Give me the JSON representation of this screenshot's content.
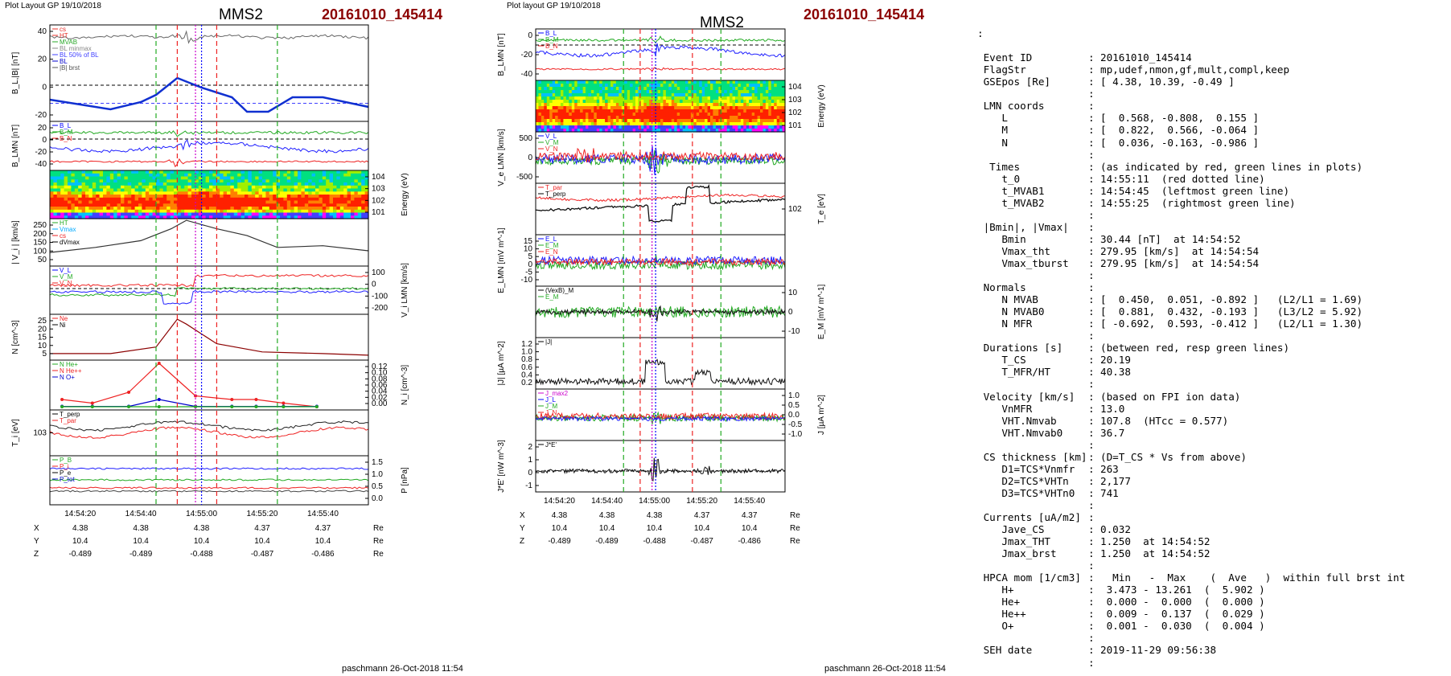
{
  "left": {
    "header_left": "Plot Layout GP 19/10/2018",
    "title": "MMS2",
    "event": "20161010_145414",
    "footer": "paschmann 26-Oct-2018 11:54",
    "time_ticks": [
      "14:54:20",
      "14:54:40",
      "14:55:00",
      "14:55:20",
      "14:55:40"
    ],
    "panels": [
      {
        "ylabel": "B_L,|B| [nT]",
        "ticks_left": [
          "40",
          "20",
          "0",
          "-20"
        ],
        "legend": [
          "cs",
          "HT",
          "MVAB",
          "BL minmax",
          "BL 50% of BL",
          "BL",
          "|B| brst"
        ],
        "legend_colors": [
          "#e8302a",
          "#e8302a",
          "#2aa82a",
          "#888888",
          "#4040ff",
          "#0000cc",
          "#555555"
        ]
      },
      {
        "ylabel": "B_LMN [nT]",
        "ticks_left": [
          "20",
          "0",
          "-20",
          "-40"
        ],
        "legend": [
          "B_L",
          "B_M",
          "B_N"
        ],
        "legend_colors": [
          "#0000ff",
          "#22aa22",
          "#ee2222"
        ]
      },
      {
        "ylabel": "Energy (eV)",
        "ticks_right": [
          "10^4",
          "10^3",
          "10^2",
          "10^1"
        ]
      },
      {
        "ylabel": "| V_i | [km/s]",
        "ticks_left": [
          "250",
          "200",
          "150",
          "100",
          "50"
        ],
        "legend": [
          "HT",
          "Vmax",
          "cs",
          "dVmax"
        ],
        "legend_colors": [
          "#22aa22",
          "#00aaff",
          "#ee2222",
          "#000000"
        ]
      },
      {
        "ylabel": "V_i LMN [km/s]",
        "ticks_right": [
          "100",
          "0",
          "-100",
          "-200"
        ],
        "legend": [
          "V_L",
          "V_M",
          "V_N"
        ],
        "legend_colors": [
          "#0000ff",
          "#22aa22",
          "#ee2222"
        ]
      },
      {
        "ylabel": "N [cm^-3]",
        "ticks_left": [
          "25",
          "20",
          "15",
          "10",
          "5"
        ],
        "legend": [
          "Ne",
          "Ni"
        ],
        "legend_colors": [
          "#ee2222",
          "#000000"
        ]
      },
      {
        "ylabel": "N_i [cm^-3]",
        "ticks_right": [
          "0.12",
          "0.10",
          "0.08",
          "0.06",
          "0.04",
          "0.02",
          "0.00"
        ],
        "legend": [
          "N He+",
          "N He++",
          "N O+"
        ],
        "legend_colors": [
          "#22aa22",
          "#ee2222",
          "#0000cc"
        ]
      },
      {
        "ylabel": "T_i [eV]",
        "ticks_left": [
          "10^3"
        ],
        "legend": [
          "T_perp",
          "T_par"
        ],
        "legend_colors": [
          "#000000",
          "#ee2222"
        ]
      },
      {
        "ylabel": "P [nPa]",
        "ticks_right": [
          "1.5",
          "1.0",
          "0.5",
          "0.0"
        ],
        "legend": [
          "P_B",
          "P_i",
          "P_e",
          "P_tot"
        ],
        "legend_colors": [
          "#22aa22",
          "#ee2222",
          "#000000",
          "#0000cc"
        ]
      }
    ],
    "coords": {
      "labels": [
        "X",
        "Y",
        "Z"
      ],
      "unit": "Re",
      "rows": [
        [
          "4.38",
          "4.38",
          "4.38",
          "4.37",
          "4.37"
        ],
        [
          "10.4",
          "10.4",
          "10.4",
          "10.4",
          "10.4"
        ],
        [
          "-0.489",
          "-0.489",
          "-0.488",
          "-0.487",
          "-0.486"
        ]
      ]
    }
  },
  "middle": {
    "header_left": "Plot layout GP 19/10/2018",
    "title": "MMS2",
    "event": "20161010_145414",
    "footer": "paschmann 26-Oct-2018 11:54",
    "time_ticks": [
      "14:54:20",
      "14:54:40",
      "14:55:00",
      "14:55:20",
      "14:55:40"
    ],
    "panels": [
      {
        "ylabel": "B_LMN [nT]",
        "ticks_left": [
          "0",
          "-20",
          "-40"
        ],
        "legend": [
          "B_L",
          "B_M",
          "B_N"
        ],
        "legend_colors": [
          "#0000ff",
          "#22aa22",
          "#ee2222"
        ]
      },
      {
        "ylabel": "Energy (eV)",
        "ticks_right": [
          "10^4",
          "10^3",
          "10^2",
          "10^1"
        ]
      },
      {
        "ylabel": "V_e LMN [km/s]",
        "ticks_left": [
          "500",
          "0",
          "-500"
        ],
        "legend": [
          "V_L",
          "V_M",
          "V_N"
        ],
        "legend_colors": [
          "#0000ff",
          "#22aa22",
          "#ee2222"
        ]
      },
      {
        "ylabel": "T_e [eV]",
        "ticks_right": [
          "10^2"
        ],
        "legend": [
          "T_par",
          "T_perp"
        ],
        "legend_colors": [
          "#ee2222",
          "#000000"
        ]
      },
      {
        "ylabel": "E_LMN [mV m^-1]",
        "ticks_left": [
          "15",
          "10",
          "5",
          "0",
          "-5",
          "-10"
        ],
        "legend": [
          "E_L",
          "E_M",
          "E_N"
        ],
        "legend_colors": [
          "#0000ff",
          "#22aa22",
          "#ee2222"
        ]
      },
      {
        "ylabel": "E_M [mV m^-1]",
        "ticks_right": [
          "10",
          "0",
          "-10"
        ],
        "legend": [
          "(VexB)_M",
          "E_M"
        ],
        "legend_colors": [
          "#000000",
          "#22aa22"
        ]
      },
      {
        "ylabel": "|J| [µA m^-2]",
        "ticks_left": [
          "1.2",
          "1.0",
          "0.8",
          "0.6",
          "0.4",
          "0.2"
        ],
        "legend": [
          "|J|"
        ],
        "legend_colors": [
          "#000000"
        ]
      },
      {
        "ylabel": "J [µA m^-2]",
        "ticks_right": [
          "1.0",
          "0.5",
          "0.0",
          "-0.5",
          "-1.0"
        ],
        "legend": [
          "J_max2",
          "J_L",
          "J_M",
          "J_N"
        ],
        "legend_colors": [
          "#cc00cc",
          "#0000ff",
          "#22aa22",
          "#ee2222"
        ]
      },
      {
        "ylabel": "J*E' [nW m^-3]",
        "ticks_left": [
          "2",
          "1",
          "0",
          "-1"
        ],
        "legend": [
          "J*E'"
        ],
        "legend_colors": [
          "#000000"
        ]
      }
    ],
    "coords": {
      "labels": [
        "X",
        "Y",
        "Z"
      ],
      "unit": "Re",
      "rows": [
        [
          "4.38",
          "4.38",
          "4.38",
          "4.37",
          "4.37"
        ],
        [
          "10.4",
          "10.4",
          "10.4",
          "10.4",
          "10.4"
        ],
        [
          "-0.489",
          "-0.489",
          "-0.488",
          "-0.487",
          "-0.486"
        ]
      ]
    }
  },
  "chart_data": [
    {
      "type": "line",
      "title": "MMS2",
      "subtitle": "20161010_145414",
      "xlabel": "",
      "x_range": [
        "14:54:10",
        "14:55:55"
      ],
      "panels": [
        {
          "ylabel": "B_L, |B| [nT]",
          "ylim": [
            -30,
            50
          ],
          "series": [
            {
              "name": "BL",
              "x": [
                "14:54:10",
                "14:54:20",
                "14:54:30",
                "14:54:40",
                "14:54:45",
                "14:54:52",
                "14:55:00",
                "14:55:10",
                "14:55:15",
                "14:55:22",
                "14:55:30",
                "14:55:40",
                "14:55:55"
              ],
              "values": [
                -12,
                -16,
                -20,
                -14,
                -8,
                6,
                -2,
                -10,
                -22,
                -22,
                -10,
                -10,
                -18
              ]
            },
            {
              "name": "|B|",
              "x": [
                "14:54:10",
                "14:54:30",
                "14:54:50",
                "14:55:10",
                "14:55:30",
                "14:55:55"
              ],
              "values": [
                40,
                40,
                38,
                40,
                40,
                40
              ]
            }
          ]
        },
        {
          "ylabel": "| V_i | [km/s]",
          "ylim": [
            0,
            280
          ],
          "series": [
            {
              "name": "|V_i|",
              "x": [
                "14:54:10",
                "14:54:25",
                "14:54:40",
                "14:54:50",
                "14:54:55",
                "14:55:05",
                "14:55:15",
                "14:55:25",
                "14:55:40",
                "14:55:55"
              ],
              "values": [
                80,
                110,
                150,
                220,
                270,
                220,
                180,
                110,
                120,
                90
              ]
            }
          ]
        },
        {
          "ylabel": "N [cm^-3]",
          "ylim": [
            0,
            28
          ],
          "series": [
            {
              "name": "Ni",
              "x": [
                "14:54:10",
                "14:54:30",
                "14:54:45",
                "14:54:52",
                "14:54:55",
                "14:55:05",
                "14:55:20",
                "14:55:40",
                "14:55:55"
              ],
              "values": [
                4,
                4,
                8,
                25,
                22,
                10,
                5,
                4,
                3
              ]
            }
          ]
        },
        {
          "ylabel": "N_i [cm^-3]",
          "ylim": [
            0,
            0.12
          ],
          "series": [
            {
              "name": "N He++",
              "x": [
                "14:54:14",
                "14:54:24",
                "14:54:36",
                "14:54:46",
                "14:54:58",
                "14:55:10",
                "14:55:18",
                "14:55:27",
                "14:55:38"
              ],
              "values": [
                0.02,
                0.01,
                0.04,
                0.12,
                0.03,
                0.02,
                0.02,
                0.01,
                0.0
              ]
            },
            {
              "name": "N O+",
              "x": [
                "14:54:14",
                "14:54:24",
                "14:54:36",
                "14:54:46",
                "14:54:58",
                "14:55:10",
                "14:55:18",
                "14:55:27",
                "14:55:38"
              ],
              "values": [
                0.001,
                0.001,
                0.001,
                0.02,
                0.001,
                0.001,
                0.001,
                0.001,
                0.001
              ]
            },
            {
              "name": "N He+",
              "x": [
                "14:54:14",
                "14:54:24",
                "14:54:36",
                "14:54:46",
                "14:54:58",
                "14:55:10",
                "14:55:18",
                "14:55:27",
                "14:55:38"
              ],
              "values": [
                0.0,
                0.0,
                0.0,
                0.0,
                0.0,
                0.0,
                0.0,
                0.0,
                0.0
              ]
            }
          ]
        },
        {
          "ylabel": "|J| [µA m^-2]",
          "ylim": [
            0,
            1.2
          ],
          "series": [
            {
              "name": "|J|",
              "x": [
                "14:54:10",
                "14:54:40",
                "14:54:50",
                "14:54:52",
                "14:54:55",
                "14:55:10",
                "14:55:15",
                "14:55:25",
                "14:55:55"
              ],
              "values": [
                0.1,
                0.15,
                0.3,
                1.25,
                0.4,
                0.35,
                0.4,
                0.15,
                0.1
              ]
            }
          ]
        }
      ]
    }
  ],
  "info": {
    "leading_colon": ":",
    "rows": [
      {
        "k": "Event ID",
        "v": "20161010_145414"
      },
      {
        "k": "FlagStr",
        "v": "mp,udef,nmon,gf,mult,compl,keep"
      },
      {
        "k": "GSEpos [Re]",
        "v": "[ 4.38, 10.39, -0.49 ]"
      },
      {
        "k": "",
        "v": ""
      },
      {
        "k": "LMN coords",
        "v": ""
      },
      {
        "k": "   L",
        "v": "[  0.568, -0.808,  0.155 ]"
      },
      {
        "k": "   M",
        "v": "[  0.822,  0.566, -0.064 ]"
      },
      {
        "k": "   N",
        "v": "[  0.036, -0.163, -0.986 ]"
      },
      {
        "k": "",
        "v": ""
      },
      {
        "k": " Times",
        "v": "(as indicated by red, green lines in plots)"
      },
      {
        "k": "   t_0",
        "v": "14:55:11  (red dotted line)"
      },
      {
        "k": "   t_MVAB1",
        "v": "14:54:45  (leftmost green line)"
      },
      {
        "k": "   t_MVAB2",
        "v": "14:55:25  (rightmost green line)"
      },
      {
        "k": "",
        "v": ""
      },
      {
        "k": "|Bmin|, |Vmax|",
        "v": ""
      },
      {
        "k": "   Bmin",
        "v": "30.44 [nT]  at 14:54:52"
      },
      {
        "k": "   Vmax_tht",
        "v": "279.95 [km/s]  at 14:54:54"
      },
      {
        "k": "   Vmax_tburst",
        "v": "279.95 [km/s]  at 14:54:54"
      },
      {
        "k": "",
        "v": ""
      },
      {
        "k": "Normals",
        "v": ""
      },
      {
        "k": "   N MVAB",
        "v": "[  0.450,  0.051, -0.892 ]   (L2/L1 = 1.69)"
      },
      {
        "k": "   N MVAB0",
        "v": "[  0.881,  0.432, -0.193 ]   (L3/L2 = 5.92)"
      },
      {
        "k": "   N MFR",
        "v": "[ -0.692,  0.593, -0.412 ]   (L2/L1 = 1.30)"
      },
      {
        "k": "",
        "v": ""
      },
      {
        "k": "Durations [s]",
        "v": "(between red, resp green lines)"
      },
      {
        "k": "   T_CS",
        "v": "20.19"
      },
      {
        "k": "   T_MFR/HT",
        "v": "40.38"
      },
      {
        "k": "",
        "v": ""
      },
      {
        "k": "Velocity [km/s]",
        "v": "(based on FPI ion data)"
      },
      {
        "k": "   VnMFR",
        "v": "13.0"
      },
      {
        "k": "   VHT.Nmvab",
        "v": "107.8  (HTcc = 0.577)"
      },
      {
        "k": "   VHT.Nmvab0",
        "v": "36.7"
      },
      {
        "k": "",
        "v": ""
      },
      {
        "k": "CS thickness [km]",
        "v": "(D=T_CS * Vs from above)"
      },
      {
        "k": "   D1=TCS*Vnmfr",
        "v": "263"
      },
      {
        "k": "   D2=TCS*VHTn",
        "v": "2,177"
      },
      {
        "k": "   D3=TCS*VHTn0",
        "v": "741"
      },
      {
        "k": "",
        "v": ""
      },
      {
        "k": "Currents [uA/m2]",
        "v": ""
      },
      {
        "k": "   Jave_CS",
        "v": "0.032"
      },
      {
        "k": "   Jmax_THT",
        "v": "1.250  at 14:54:52"
      },
      {
        "k": "   Jmax_brst",
        "v": "1.250  at 14:54:52"
      },
      {
        "k": "",
        "v": ""
      },
      {
        "k": "HPCA mom [1/cm3]",
        "v": "  Min   -  Max    (  Ave   )  within full brst int"
      },
      {
        "k": "   H+",
        "v": " 3.473 - 13.261  (  5.902 )"
      },
      {
        "k": "   He+",
        "v": " 0.000 -  0.000  (  0.000 )"
      },
      {
        "k": "   He++",
        "v": " 0.009 -  0.137  (  0.029 )"
      },
      {
        "k": "   O+",
        "v": " 0.001 -  0.030  (  0.004 )"
      },
      {
        "k": "",
        "v": ""
      },
      {
        "k": "SEH date",
        "v": "2019-11-29 09:56:38"
      },
      {
        "k": "",
        "v": ""
      }
    ]
  }
}
